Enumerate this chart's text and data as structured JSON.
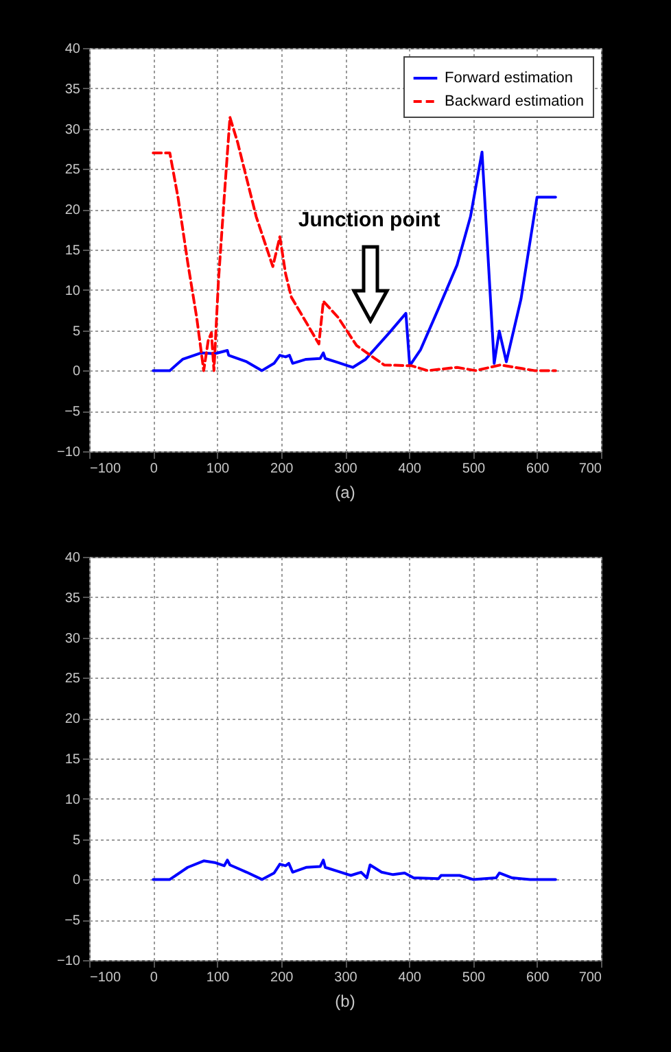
{
  "chart_data": [
    {
      "type": "line",
      "xlim": [
        -100,
        700
      ],
      "xticks": [
        -100,
        0,
        100,
        200,
        300,
        400,
        500,
        600,
        700
      ],
      "ylim": [
        -10,
        40
      ],
      "yticks": [
        -10,
        -5,
        0,
        5,
        10,
        15,
        20,
        25,
        30,
        35,
        40
      ],
      "grid": true,
      "legend": "top right",
      "series": [
        {
          "name": "Forward estimation",
          "color": "#0000ff",
          "line_style": "solid",
          "x": [
            0,
            26,
            46,
            75,
            96,
            116,
            118,
            146,
            170,
            189,
            198,
            207,
            213,
            218,
            239,
            261,
            266,
            269,
            289,
            312,
            332,
            368,
            395,
            401,
            418,
            446,
            475,
            496,
            514,
            533,
            541,
            552,
            575,
            600,
            629
          ],
          "values": [
            0,
            0,
            1.4,
            2.2,
            2.1,
            2.5,
            1.9,
            1.1,
            0,
            0.9,
            1.9,
            1.7,
            1.9,
            0.9,
            1.4,
            1.5,
            2.2,
            1.5,
            1.0,
            0.4,
            1.4,
            4.6,
            7.1,
            0.6,
            2.6,
            7.7,
            13.1,
            19.1,
            27.1,
            0.9,
            4.9,
            1.1,
            8.9,
            21.5,
            21.5
          ]
        },
        {
          "name": "Backward estimation",
          "color": "#ff0000",
          "line_style": "dashed",
          "x": [
            0,
            26,
            39,
            54,
            68,
            79,
            86,
            91,
            95,
            102,
            111,
            120,
            132,
            161,
            187,
            198,
            207,
            216,
            239,
            259,
            266,
            289,
            318,
            361,
            404,
            429,
            475,
            504,
            543,
            596,
            629
          ],
          "values": [
            27.0,
            27.0,
            21.4,
            13.4,
            6.6,
            0,
            3.7,
            4.7,
            0,
            11.1,
            21.4,
            31.4,
            28.3,
            19.1,
            12.9,
            16.6,
            12.0,
            9.1,
            6.0,
            3.3,
            8.6,
            6.6,
            3.1,
            0.7,
            0.6,
            0,
            0.4,
            0,
            0.7,
            0,
            0
          ]
        }
      ],
      "title": "(a)",
      "annotations": [
        "Junction point"
      ]
    },
    {
      "type": "line",
      "xlim": [
        -100,
        700
      ],
      "xticks": [
        -100,
        0,
        100,
        200,
        300,
        400,
        500,
        600,
        700
      ],
      "ylim": [
        -10,
        40
      ],
      "yticks": [
        -10,
        -5,
        0,
        5,
        10,
        15,
        20,
        25,
        30,
        35,
        40
      ],
      "grid": true,
      "series": [
        {
          "color": "#0000ff",
          "line_style": "solid",
          "x": [
            0,
            26,
            54,
            79,
            96,
            111,
            116,
            120,
            146,
            170,
            189,
            198,
            207,
            212,
            218,
            239,
            261,
            266,
            269,
            289,
            309,
            325,
            334,
            339,
            357,
            375,
            393,
            407,
            446,
            450,
            479,
            500,
            536,
            541,
            561,
            589,
            629
          ],
          "values": [
            0,
            0,
            1.5,
            2.3,
            2.1,
            1.7,
            2.4,
            1.8,
            0.9,
            0,
            0.8,
            1.9,
            1.7,
            2.0,
            0.9,
            1.5,
            1.6,
            2.4,
            1.5,
            1.0,
            0.5,
            0.9,
            0.2,
            1.8,
            0.9,
            0.6,
            0.8,
            0.2,
            0.1,
            0.5,
            0.5,
            0,
            0.2,
            0.8,
            0.2,
            0,
            0
          ]
        }
      ],
      "title": "(b)"
    }
  ]
}
